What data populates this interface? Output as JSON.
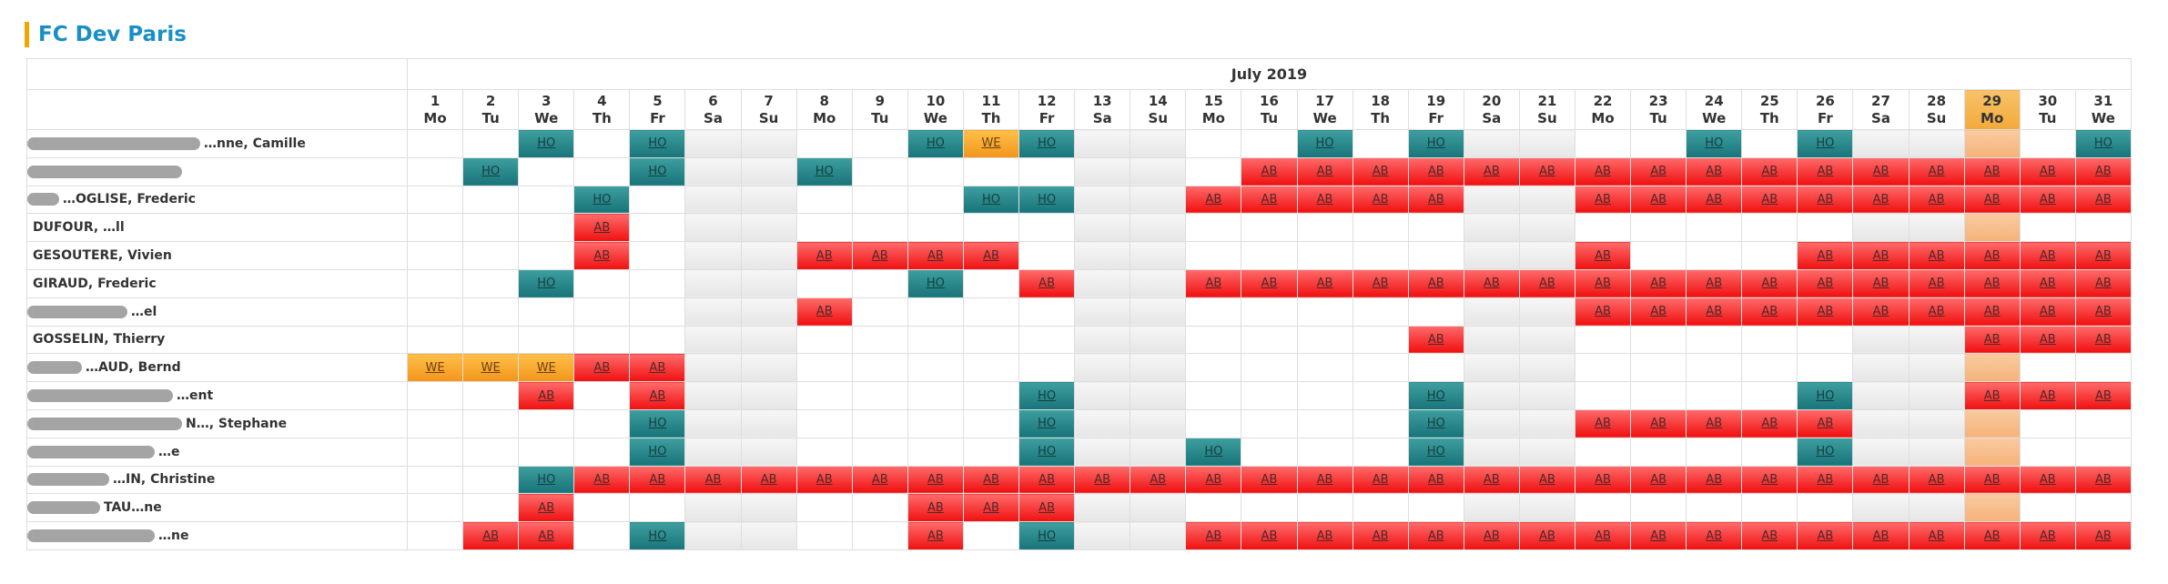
{
  "page": {
    "title": "FC Dev Paris"
  },
  "calendar": {
    "month": "July 2019",
    "today_day": 29,
    "days": [
      {
        "n": "1",
        "d": "Mo"
      },
      {
        "n": "2",
        "d": "Tu"
      },
      {
        "n": "3",
        "d": "We"
      },
      {
        "n": "4",
        "d": "Th"
      },
      {
        "n": "5",
        "d": "Fr"
      },
      {
        "n": "6",
        "d": "Sa"
      },
      {
        "n": "7",
        "d": "Su"
      },
      {
        "n": "8",
        "d": "Mo"
      },
      {
        "n": "9",
        "d": "Tu"
      },
      {
        "n": "10",
        "d": "We"
      },
      {
        "n": "11",
        "d": "Th"
      },
      {
        "n": "12",
        "d": "Fr"
      },
      {
        "n": "13",
        "d": "Sa"
      },
      {
        "n": "14",
        "d": "Su"
      },
      {
        "n": "15",
        "d": "Mo"
      },
      {
        "n": "16",
        "d": "Tu"
      },
      {
        "n": "17",
        "d": "We"
      },
      {
        "n": "18",
        "d": "Th"
      },
      {
        "n": "19",
        "d": "Fr"
      },
      {
        "n": "20",
        "d": "Sa"
      },
      {
        "n": "21",
        "d": "Su"
      },
      {
        "n": "22",
        "d": "Mo"
      },
      {
        "n": "23",
        "d": "Tu"
      },
      {
        "n": "24",
        "d": "We"
      },
      {
        "n": "25",
        "d": "Th"
      },
      {
        "n": "26",
        "d": "Fr"
      },
      {
        "n": "27",
        "d": "Sa"
      },
      {
        "n": "28",
        "d": "Su"
      },
      {
        "n": "29",
        "d": "Mo"
      },
      {
        "n": "30",
        "d": "Tu"
      },
      {
        "n": "31",
        "d": "We"
      }
    ],
    "rows": [
      {
        "name": "…nne, Camille",
        "blur": 190,
        "cells": {
          "3": "HO",
          "5": "HO",
          "10": "HO",
          "11": "WE",
          "12": "HO",
          "17": "HO",
          "19": "HO",
          "24": "HO",
          "26": "HO",
          "31": "HO"
        }
      },
      {
        "name": "",
        "blur": 170,
        "cells": {
          "2": "HO",
          "5": "HO",
          "8": "HO",
          "16": "AB",
          "17": "AB",
          "18": "AB",
          "19": "AB",
          "20": "AB",
          "21": "AB",
          "22": "AB",
          "23": "AB",
          "24": "AB",
          "25": "AB",
          "26": "AB",
          "27": "AB",
          "28": "AB",
          "29": "AB",
          "30": "AB",
          "31": "AB"
        }
      },
      {
        "name": "…OGLISE, Frederic",
        "blur": 35,
        "cells": {
          "4": "HO",
          "11": "HO",
          "12": "HO",
          "15": "AB",
          "16": "AB",
          "17": "AB",
          "18": "AB",
          "19": "AB",
          "22": "AB",
          "23": "AB",
          "24": "AB",
          "25": "AB",
          "26": "AB",
          "27": "AB",
          "28": "AB",
          "29": "AB",
          "30": "AB",
          "31": "AB"
        }
      },
      {
        "name": "DUFOUR, …ll",
        "blur": 0,
        "cells": {
          "4": "AB"
        }
      },
      {
        "name": "GESOUTERE, Vivien",
        "blur": 0,
        "cells": {
          "4": "AB",
          "8": "AB",
          "9": "AB",
          "10": "AB",
          "11": "AB",
          "22": "AB",
          "26": "AB",
          "27": "AB",
          "28": "AB",
          "29": "AB",
          "30": "AB",
          "31": "AB"
        }
      },
      {
        "name": "GIRAUD, Frederic",
        "blur": 0,
        "cells": {
          "3": "HO",
          "10": "HO",
          "12": "AB",
          "15": "AB",
          "16": "AB",
          "17": "AB",
          "18": "AB",
          "19": "AB",
          "20": "AB",
          "21": "AB",
          "22": "AB",
          "23": "AB",
          "24": "AB",
          "25": "AB",
          "26": "AB",
          "27": "AB",
          "28": "AB",
          "29": "AB",
          "30": "AB",
          "31": "AB"
        }
      },
      {
        "name": "…el",
        "blur": 110,
        "cells": {
          "8": "AB",
          "22": "AB",
          "23": "AB",
          "24": "AB",
          "25": "AB",
          "26": "AB",
          "27": "AB",
          "28": "AB",
          "29": "AB",
          "30": "AB",
          "31": "AB"
        }
      },
      {
        "name": "GOSSELIN, Thierry",
        "blur": 0,
        "cells": {
          "19": "AB",
          "29": "AB",
          "30": "AB",
          "31": "AB"
        }
      },
      {
        "name": "…AUD, Bernd",
        "blur": 60,
        "cells": {
          "1": "WE",
          "2": "WE",
          "3": "WE",
          "4": "AB",
          "5": "AB"
        }
      },
      {
        "name": "…ent",
        "blur": 160,
        "cells": {
          "3": "AB",
          "5": "AB",
          "12": "HO",
          "19": "HO",
          "26": "HO",
          "29": "AB",
          "30": "AB",
          "31": "AB"
        }
      },
      {
        "name": "N…, Stephane",
        "blur": 170,
        "cells": {
          "5": "HO",
          "12": "HO",
          "19": "HO",
          "22": "AB",
          "23": "AB",
          "24": "AB",
          "25": "AB",
          "26": "AB"
        }
      },
      {
        "name": "…e",
        "blur": 140,
        "cells": {
          "5": "HO",
          "12": "HO",
          "15": "HO",
          "19": "HO",
          "26": "HO"
        }
      },
      {
        "name": "…IN, Christine",
        "blur": 90,
        "cells": {
          "3": "HO",
          "4": "AB",
          "5": "AB",
          "6": "AB",
          "7": "AB",
          "8": "AB",
          "9": "AB",
          "10": "AB",
          "11": "AB",
          "12": "AB",
          "13": "AB",
          "14": "AB",
          "15": "AB",
          "16": "AB",
          "17": "AB",
          "18": "AB",
          "19": "AB",
          "20": "AB",
          "21": "AB",
          "22": "AB",
          "23": "AB",
          "24": "AB",
          "25": "AB",
          "26": "AB",
          "27": "AB",
          "28": "AB",
          "29": "AB",
          "30": "AB",
          "31": "AB"
        }
      },
      {
        "name": "TAU…ne",
        "blur": 80,
        "cells": {
          "3": "AB",
          "10": "AB",
          "11": "AB",
          "12": "AB"
        }
      },
      {
        "name": "…ne",
        "blur": 140,
        "cells": {
          "2": "AB",
          "3": "AB",
          "5": "HO",
          "10": "AB",
          "12": "HO",
          "15": "AB",
          "16": "AB",
          "17": "AB",
          "18": "AB",
          "19": "AB",
          "20": "AB",
          "21": "AB",
          "22": "AB",
          "23": "AB",
          "24": "AB",
          "25": "AB",
          "26": "AB",
          "27": "AB",
          "28": "AB",
          "29": "AB",
          "30": "AB",
          "31": "AB"
        }
      }
    ]
  }
}
